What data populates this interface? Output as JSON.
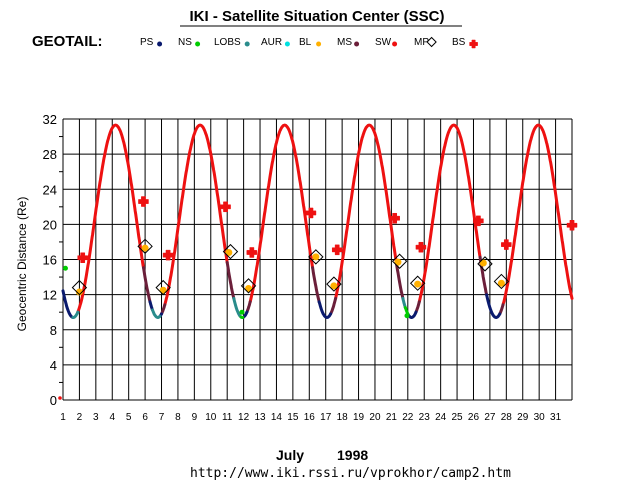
{
  "chart_data": {
    "type": "line",
    "title": "IKI - Satellite Situation Center (SSC)",
    "satellite": "GEOTAIL:",
    "ylabel": "Geocentric Distance (Re)",
    "xlabel_month": "July",
    "xlabel_year": "1998",
    "url": "http://www.iki.rssi.ru/vprokhor/camp2.htm",
    "x_ticks": [
      "1",
      "2",
      "3",
      "4",
      "5",
      "6",
      "7",
      "8",
      "9",
      "10",
      "11",
      "12",
      "13",
      "14",
      "15",
      "16",
      "17",
      "18",
      "19",
      "20",
      "21",
      "22",
      "23",
      "24",
      "25",
      "26",
      "27",
      "28",
      "29",
      "30",
      "31"
    ],
    "y_ticks": [
      "0",
      "4",
      "8",
      "12",
      "16",
      "20",
      "24",
      "28",
      "32"
    ],
    "xlim": [
      1,
      32
    ],
    "ylim": [
      0,
      32
    ],
    "grid": true,
    "legend": [
      {
        "label": "PS",
        "color": "#0a1a6e",
        "marker": "dot"
      },
      {
        "label": "NS",
        "color": "#00cc00",
        "marker": "dot"
      },
      {
        "label": "LOBS",
        "color": "#2a8c8c",
        "marker": "dot"
      },
      {
        "label": "AUR",
        "color": "#00e0e0",
        "marker": "dot"
      },
      {
        "label": "BL",
        "color": "#ffb000",
        "marker": "dot"
      },
      {
        "label": "MS",
        "color": "#6b1f3a",
        "marker": "dot"
      },
      {
        "label": "SW",
        "color": "#ee1111",
        "marker": "dot"
      },
      {
        "label": "MP",
        "color": "#000000",
        "marker": "diamond"
      },
      {
        "label": "BS",
        "color": "#ee1111",
        "marker": "cross"
      }
    ],
    "orbit": {
      "period_days": 5.15,
      "first_apogee_day": 4.2,
      "apogee_re": 31.3,
      "perigee_re": 9.4
    },
    "segments": [
      {
        "region": "SW",
        "from": 1.9,
        "to": 5.9,
        "color": "#ee1111"
      },
      {
        "region": "SW",
        "from": 7.2,
        "to": 11.0,
        "color": "#ee1111"
      },
      {
        "region": "SW",
        "from": 12.4,
        "to": 16.2,
        "color": "#ee1111"
      },
      {
        "region": "SW",
        "from": 17.6,
        "to": 21.3,
        "color": "#ee1111"
      },
      {
        "region": "SW",
        "from": 22.7,
        "to": 26.4,
        "color": "#ee1111"
      },
      {
        "region": "SW",
        "from": 27.8,
        "to": 32.0,
        "color": "#ee1111"
      },
      {
        "region": "MS",
        "from": 5.9,
        "to": 6.3,
        "color": "#6b1f3a"
      },
      {
        "region": "MS",
        "from": 7.0,
        "to": 7.2,
        "color": "#6b1f3a"
      },
      {
        "region": "MS",
        "from": 11.0,
        "to": 11.4,
        "color": "#6b1f3a"
      },
      {
        "region": "MS",
        "from": 12.2,
        "to": 12.4,
        "color": "#6b1f3a"
      },
      {
        "region": "MS",
        "from": 16.2,
        "to": 16.6,
        "color": "#6b1f3a"
      },
      {
        "region": "MS",
        "from": 17.3,
        "to": 17.6,
        "color": "#6b1f3a"
      },
      {
        "region": "MS",
        "from": 21.3,
        "to": 21.7,
        "color": "#6b1f3a"
      },
      {
        "region": "MS",
        "from": 22.5,
        "to": 22.7,
        "color": "#6b1f3a"
      },
      {
        "region": "MS",
        "from": 26.4,
        "to": 26.8,
        "color": "#6b1f3a"
      },
      {
        "region": "MS",
        "from": 27.6,
        "to": 27.8,
        "color": "#6b1f3a"
      },
      {
        "region": "PS",
        "from": 1.0,
        "to": 1.6,
        "color": "#0a1a6e"
      },
      {
        "region": "PS",
        "from": 6.3,
        "to": 6.45,
        "color": "#0a1a6e"
      },
      {
        "region": "PS",
        "from": 6.9,
        "to": 7.0,
        "color": "#0a1a6e"
      },
      {
        "region": "PS",
        "from": 16.6,
        "to": 17.3,
        "color": "#0a1a6e"
      },
      {
        "region": "PS",
        "from": 26.8,
        "to": 27.6,
        "color": "#0a1a6e"
      },
      {
        "region": "LOBS",
        "from": 6.45,
        "to": 6.9,
        "color": "#2a8c8c"
      },
      {
        "region": "LOBS",
        "from": 11.4,
        "to": 11.85,
        "color": "#2a8c8c"
      },
      {
        "region": "LOBS",
        "from": 1.6,
        "to": 1.9,
        "color": "#2a8c8c"
      },
      {
        "region": "LOBS",
        "from": 21.7,
        "to": 21.85,
        "color": "#2a8c8c"
      },
      {
        "region": "PS",
        "from": 11.95,
        "to": 12.2,
        "color": "#0a1a6e"
      },
      {
        "region": "PS",
        "from": 22.0,
        "to": 22.5,
        "color": "#0a1a6e"
      },
      {
        "region": "NS",
        "from": 11.85,
        "to": 11.95,
        "color": "#00cc00"
      },
      {
        "region": "NS",
        "from": 21.85,
        "to": 22.0,
        "color": "#00cc00"
      }
    ],
    "ns_points": [
      [
        1.15,
        15.0
      ],
      [
        11.9,
        10.0
      ],
      [
        21.95,
        9.6
      ]
    ],
    "bl_points": [
      [
        2.0,
        12.3
      ],
      [
        6.0,
        17.3
      ],
      [
        7.1,
        12.5
      ],
      [
        11.1,
        16.8
      ],
      [
        12.3,
        12.7
      ],
      [
        16.4,
        16.3
      ],
      [
        17.5,
        13.0
      ],
      [
        21.4,
        15.7
      ],
      [
        22.6,
        13.2
      ],
      [
        26.6,
        15.6
      ],
      [
        27.7,
        13.3
      ]
    ],
    "mp_points": [
      [
        2.0,
        12.8
      ],
      [
        6.0,
        17.5
      ],
      [
        7.1,
        12.8
      ],
      [
        11.2,
        16.9
      ],
      [
        12.3,
        13.0
      ],
      [
        16.4,
        16.3
      ],
      [
        17.5,
        13.2
      ],
      [
        21.5,
        15.8
      ],
      [
        22.6,
        13.3
      ],
      [
        26.7,
        15.5
      ],
      [
        27.7,
        13.5
      ]
    ],
    "bs_points": [
      [
        2.2,
        16.2
      ],
      [
        5.9,
        22.6
      ],
      [
        7.4,
        16.5
      ],
      [
        10.9,
        22.0
      ],
      [
        12.5,
        16.8
      ],
      [
        16.1,
        21.3
      ],
      [
        17.7,
        17.1
      ],
      [
        21.2,
        20.7
      ],
      [
        22.8,
        17.4
      ],
      [
        26.3,
        20.4
      ],
      [
        28.0,
        17.7
      ],
      [
        32.0,
        19.9
      ]
    ]
  }
}
